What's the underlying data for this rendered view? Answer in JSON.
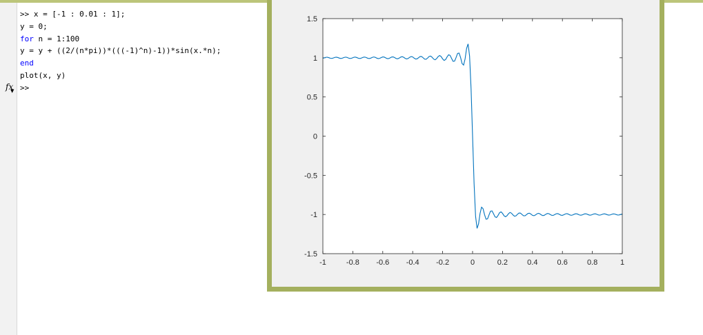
{
  "command_window": {
    "lines": [
      {
        "prompt": ">> ",
        "code": "x = [-1 : 0.01 : 1];"
      },
      {
        "prompt": "",
        "code": "y = 0;"
      },
      {
        "keyword": "for",
        "code": " n = 1:100"
      },
      {
        "prompt": "",
        "code": "y = y + ((2/(n*pi))*(((-1)^n)-1))*sin(x.*n);"
      },
      {
        "keyword": "end",
        "code": ""
      },
      {
        "prompt": "",
        "code": "plot(x, y)"
      }
    ],
    "fx_label": "fx",
    "current_prompt": ">>"
  },
  "chart_data": {
    "type": "line",
    "xlim": [
      -1,
      1
    ],
    "ylim": [
      -1.5,
      1.5
    ],
    "xticks": [
      -1,
      -0.8,
      -0.6,
      -0.4,
      -0.2,
      0,
      0.2,
      0.4,
      0.6,
      0.8,
      1
    ],
    "xtick_labels": [
      "-1",
      "-0.8",
      "-0.6",
      "-0.4",
      "-0.2",
      "0",
      "0.2",
      "0.4",
      "0.6",
      "0.8",
      "1"
    ],
    "yticks": [
      -1.5,
      -1,
      -0.5,
      0,
      0.5,
      1,
      1.5
    ],
    "ytick_labels": [
      "-1.5",
      "-1",
      "-0.5",
      "0",
      "0.5",
      "1",
      "1.5"
    ],
    "series": [
      {
        "color": "#0072bd",
        "x_start": -1,
        "x_end": 1,
        "x_step": 0.01,
        "terms": 100,
        "function": "y = sum over n=1..100 of (2/(n*pi))*((-1)^n - 1)*sin(n*x)"
      }
    ],
    "grid": false,
    "box": true
  }
}
